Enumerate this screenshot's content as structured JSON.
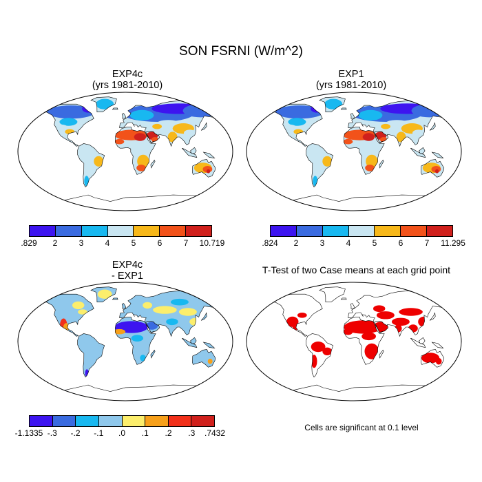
{
  "figure": {
    "main_title": "SON FSRNI (W/m^2)"
  },
  "panels": [
    {
      "title_line1": "EXP4c",
      "title_line2": "(yrs 1981-2010)",
      "colorbar": {
        "colors": [
          "#3d14f0",
          "#3a6be0",
          "#18b8f0",
          "#c9e6f2",
          "#f7b81a",
          "#f2521a",
          "#d0201c"
        ],
        "labels": [
          ".829",
          "2",
          "3",
          "4",
          "5",
          "6",
          "7",
          "10.719"
        ]
      }
    },
    {
      "title_line1": "EXP1",
      "title_line2": "(yrs 1981-2010)",
      "colorbar": {
        "colors": [
          "#3d14f0",
          "#3a6be0",
          "#18b8f0",
          "#c9e6f2",
          "#f7b81a",
          "#f2521a",
          "#d0201c"
        ],
        "labels": [
          ".824",
          "2",
          "3",
          "4",
          "5",
          "6",
          "7",
          "11.295"
        ]
      }
    },
    {
      "title_line1": "EXP4c",
      "title_line2": "- EXP1",
      "colorbar": {
        "colors": [
          "#3d14f0",
          "#3a6be0",
          "#18b8f0",
          "#8fc8ec",
          "#fcee6c",
          "#f7a01a",
          "#f2301a",
          "#d0201c"
        ],
        "labels": [
          "-1.1335",
          "-.3",
          "-.2",
          "-.1",
          ".0",
          ".1",
          ".2",
          ".3",
          ".7432"
        ]
      }
    },
    {
      "title": "T-Test of two Case means at each grid point",
      "note": "Cells are significant at 0.1 level",
      "significance_color": "#ee0000"
    }
  ]
}
